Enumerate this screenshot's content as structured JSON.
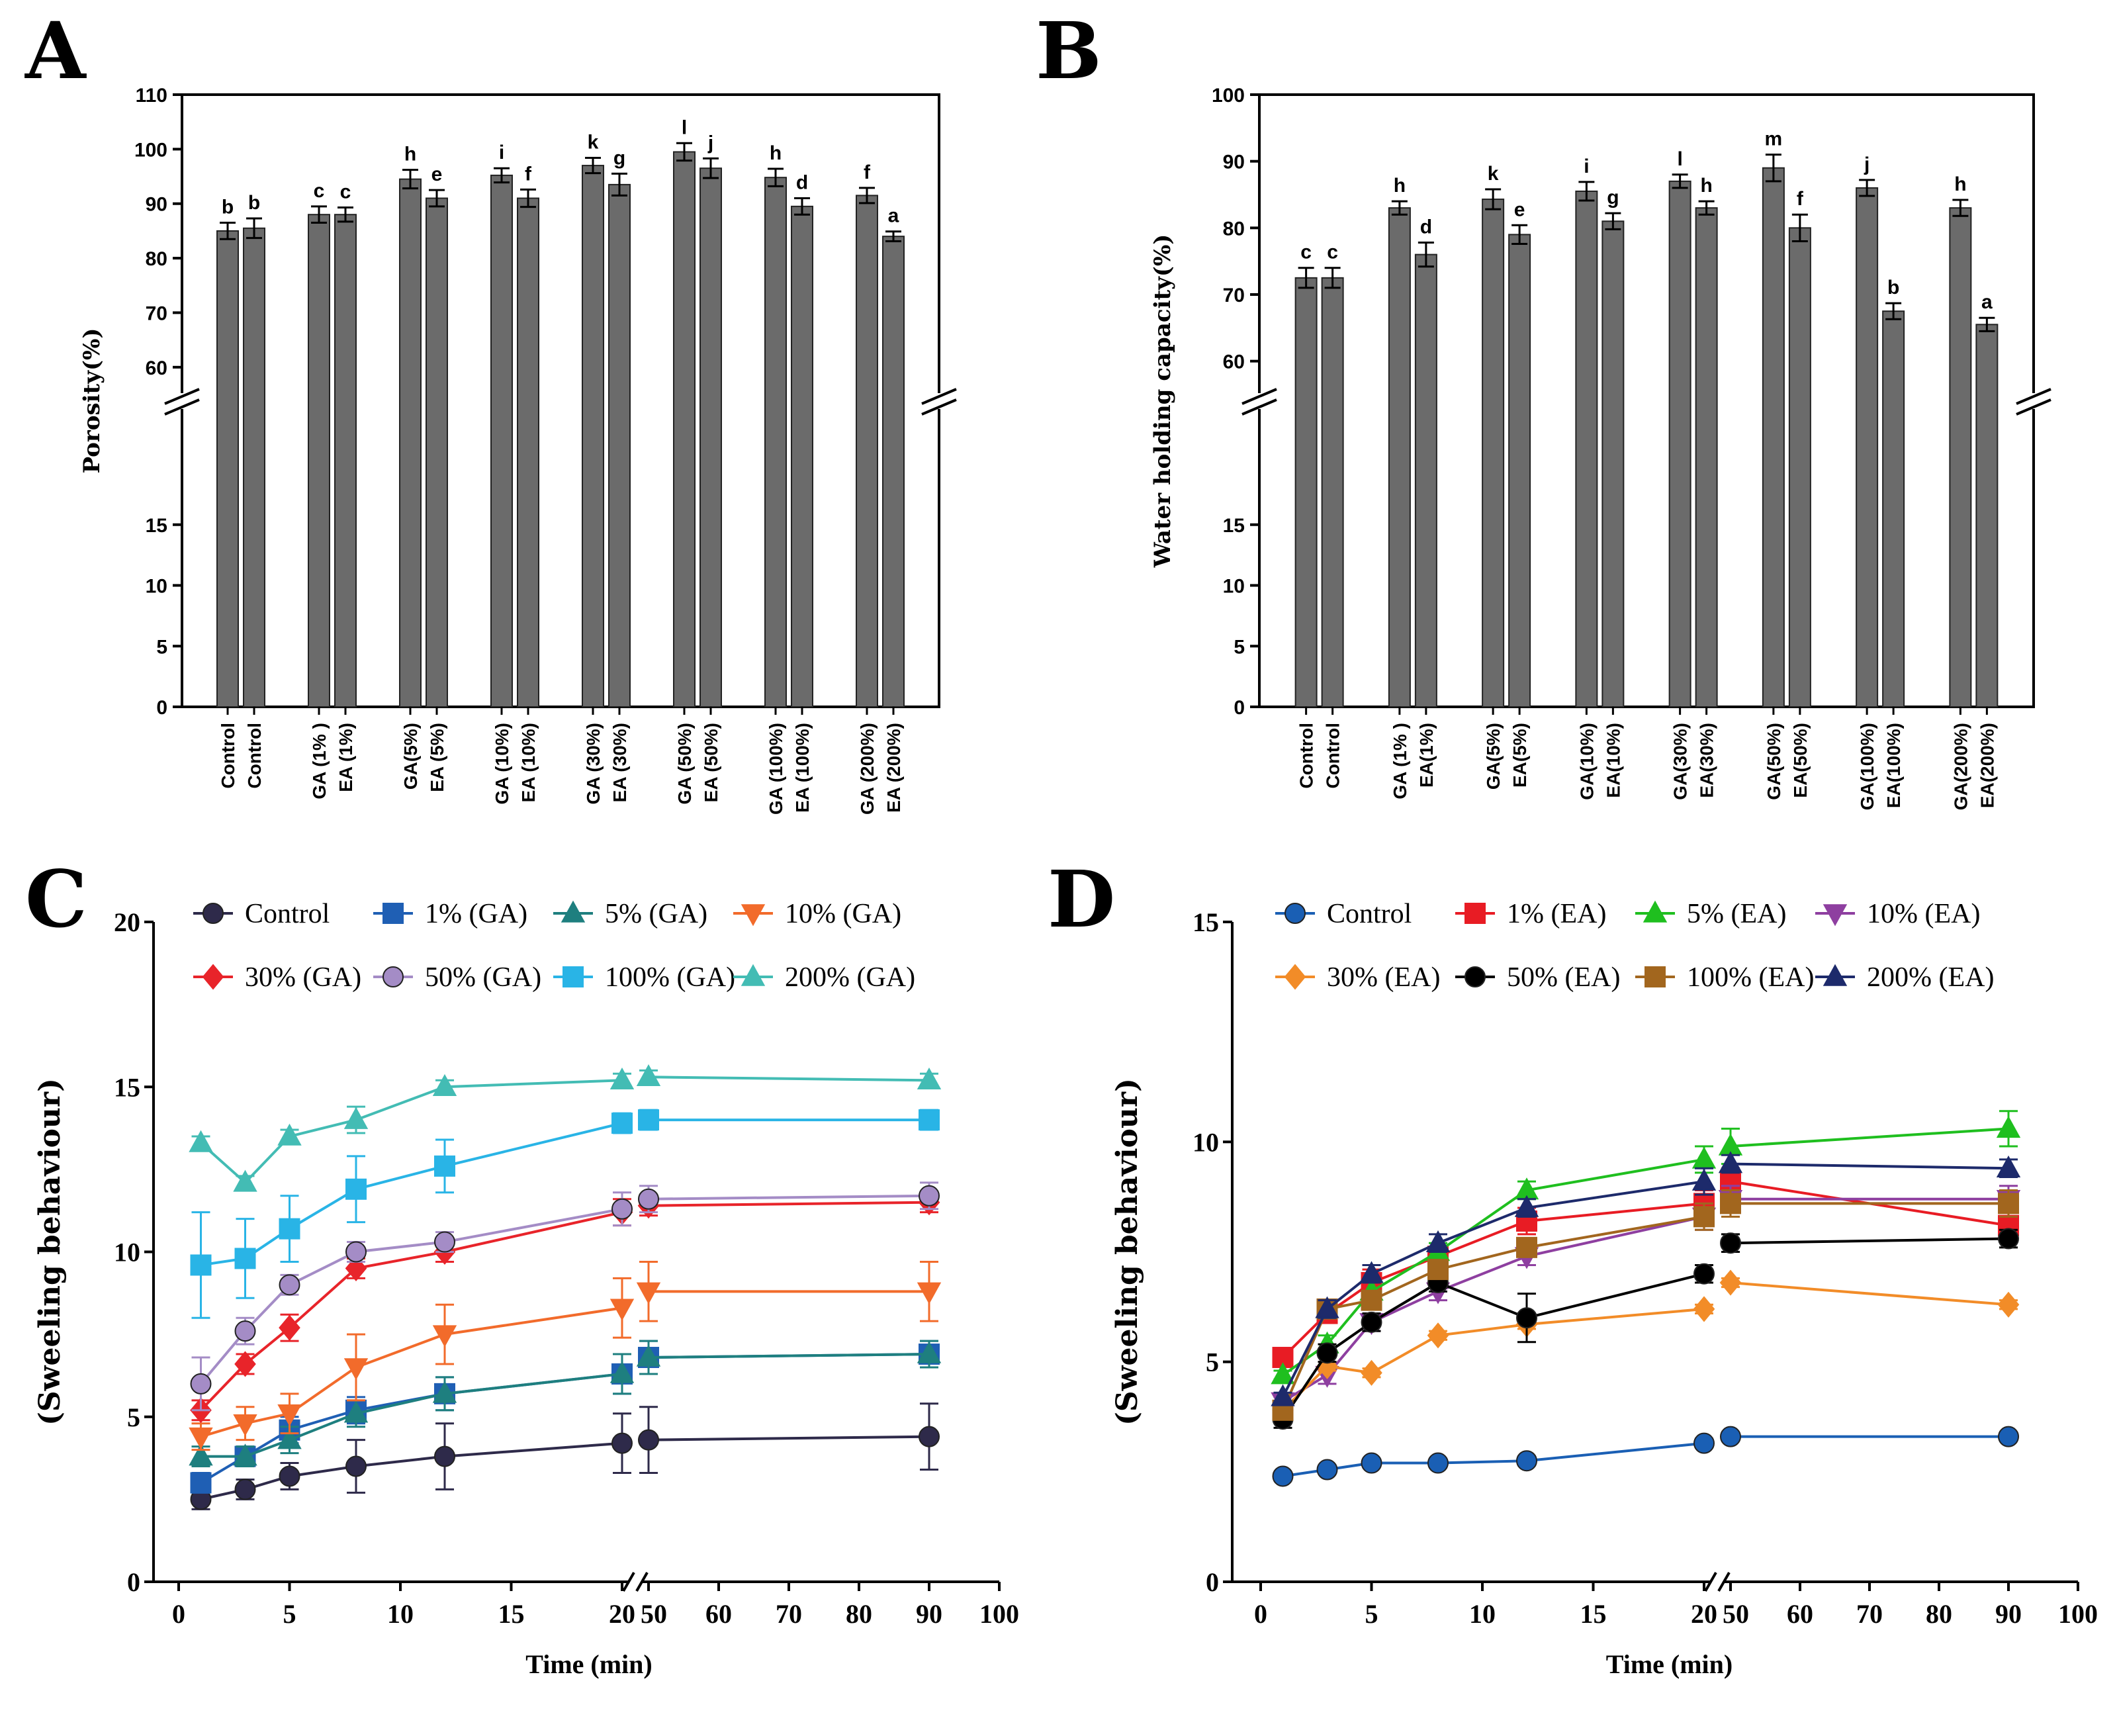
{
  "panels": {
    "A": "A",
    "B": "B",
    "C": "C",
    "D": "D"
  },
  "chart_data": [
    {
      "panel": "A",
      "type": "bar",
      "ylabel": "Porosity(%)",
      "axis_break": true,
      "lower_ticks": [
        0,
        5,
        10,
        15
      ],
      "upper_ticks": [
        60,
        70,
        80,
        90,
        100,
        110
      ],
      "categories": [
        "Control",
        "Control",
        "GA (1% )",
        "EA (1%)",
        "GA(5%)",
        "EA (5%)",
        "GA (10%)",
        "EA (10%)",
        "GA (30%)",
        "EA (30%)",
        "GA (50%)",
        "EA (50%)",
        "GA (100%)",
        "EA (100%)",
        "GA (200%)",
        "EA (200%)"
      ],
      "values": [
        85,
        85.5,
        88,
        88,
        94.5,
        91,
        95.2,
        91,
        97,
        93.5,
        99.5,
        96.5,
        94.8,
        89.5,
        91.5,
        84
      ],
      "errors": [
        1.5,
        1.8,
        1.5,
        1.3,
        1.7,
        1.5,
        1.3,
        1.6,
        1.4,
        2.0,
        1.6,
        1.8,
        1.6,
        1.5,
        1.4,
        0.9
      ],
      "letters": [
        "b",
        "b",
        "c",
        "c",
        "h",
        "e",
        "i",
        "f",
        "k",
        "g",
        "l",
        "j",
        "h",
        "d",
        "f",
        "a"
      ]
    },
    {
      "panel": "B",
      "type": "bar",
      "ylabel": "Water holding capacity(%)",
      "axis_break": true,
      "lower_ticks": [
        0,
        5,
        10,
        15
      ],
      "upper_ticks": [
        60,
        70,
        80,
        90,
        100
      ],
      "categories": [
        "Control",
        "Control",
        "GA (1% )",
        "EA(1%)",
        "GA(5%)",
        "EA(5%)",
        "GA(10%)",
        "EA(10%)",
        "GA(30%)",
        "EA(30%)",
        "GA(50%)",
        "EA(50%)",
        "GA(100%)",
        "EA(100%)",
        "GA(200%)",
        "EA(200%)"
      ],
      "values": [
        72.5,
        72.5,
        83,
        76,
        84.3,
        79,
        85.5,
        81,
        87,
        83,
        89,
        80,
        86,
        67.5,
        83,
        65.5
      ],
      "errors": [
        1.5,
        1.5,
        1.0,
        1.8,
        1.5,
        1.4,
        1.4,
        1.2,
        1.0,
        1.0,
        2.0,
        2.0,
        1.2,
        1.2,
        1.2,
        1.0
      ],
      "letters": [
        "c",
        "c",
        "h",
        "d",
        "k",
        "e",
        "i",
        "g",
        "l",
        "h",
        "m",
        "f",
        "j",
        "b",
        "h",
        "a"
      ]
    },
    {
      "panel": "C",
      "type": "line",
      "xlabel": "Time (min)",
      "ylabel": "(Sweeling behaviour)",
      "ylim": [
        0,
        20
      ],
      "yticks": [
        0,
        5,
        10,
        15,
        20
      ],
      "x_ticks_left": [
        0,
        5,
        10,
        15,
        20
      ],
      "x_ticks_right": [
        50,
        60,
        70,
        80,
        90,
        100
      ],
      "x": [
        1,
        3,
        5,
        8,
        12,
        20,
        50,
        90
      ],
      "series": [
        {
          "name": "Control",
          "color": "#2e2a4a",
          "marker": "circle",
          "values": [
            2.5,
            2.8,
            3.2,
            3.5,
            3.8,
            4.2,
            4.3,
            4.4
          ],
          "errors": [
            0.3,
            0.3,
            0.4,
            0.8,
            1.0,
            0.9,
            1.0,
            1.0
          ]
        },
        {
          "name": "1% (GA)",
          "color": "#1f5fb4",
          "marker": "square",
          "values": [
            3.0,
            3.8,
            4.6,
            5.2,
            5.7,
            6.3,
            6.8,
            6.9
          ],
          "errors": [
            0.3,
            0.3,
            0.4,
            0.4,
            0.5,
            0.6,
            0.5,
            0.4
          ]
        },
        {
          "name": "5% (GA)",
          "color": "#1e7f7f",
          "marker": "triangle-up",
          "values": [
            3.8,
            3.8,
            4.3,
            5.1,
            5.7,
            6.3,
            6.8,
            6.9
          ],
          "errors": [
            0.3,
            0.3,
            0.4,
            0.4,
            0.5,
            0.6,
            0.5,
            0.4
          ]
        },
        {
          "name": "10% (GA)",
          "color": "#f26b2b",
          "marker": "triangle-down",
          "values": [
            4.4,
            4.8,
            5.1,
            6.5,
            7.5,
            8.3,
            8.8,
            8.8
          ],
          "errors": [
            0.4,
            0.5,
            0.6,
            1.0,
            0.9,
            0.9,
            0.9,
            0.9
          ]
        },
        {
          "name": "30% (GA)",
          "color": "#e8242a",
          "marker": "diamond",
          "values": [
            5.2,
            6.6,
            7.7,
            9.5,
            10.0,
            11.2,
            11.4,
            11.5
          ],
          "errors": [
            0.3,
            0.3,
            0.4,
            0.3,
            0.3,
            0.4,
            0.3,
            0.3
          ]
        },
        {
          "name": "50% (GA)",
          "color": "#a48cc6",
          "marker": "circle",
          "values": [
            6.0,
            7.6,
            9.0,
            10.0,
            10.3,
            11.3,
            11.6,
            11.7
          ],
          "errors": [
            0.8,
            0.4,
            0.3,
            0.3,
            0.3,
            0.5,
            0.4,
            0.4
          ]
        },
        {
          "name": "100% (GA)",
          "color": "#29b4e6",
          "marker": "square",
          "values": [
            9.6,
            9.8,
            10.7,
            11.9,
            12.6,
            13.9,
            14.0,
            14.0
          ],
          "errors": [
            1.6,
            1.2,
            1.0,
            1.0,
            0.8,
            0.3,
            0.3,
            0.3
          ]
        },
        {
          "name": "200% (GA)",
          "color": "#43bcb4",
          "marker": "triangle-up",
          "values": [
            13.3,
            12.1,
            13.5,
            14.0,
            15.0,
            15.2,
            15.3,
            15.2
          ],
          "errors": [
            0.2,
            0.2,
            0.2,
            0.4,
            0.2,
            0.2,
            0.2,
            0.2
          ]
        }
      ]
    },
    {
      "panel": "D",
      "type": "line",
      "xlabel": "Time (min)",
      "ylabel": "(Sweeling behaviour)",
      "ylim": [
        0,
        15
      ],
      "yticks": [
        0,
        5,
        10,
        15
      ],
      "x_ticks_left": [
        0,
        5,
        10,
        15,
        20
      ],
      "x_ticks_right": [
        50,
        60,
        70,
        80,
        90,
        100
      ],
      "x": [
        1,
        3,
        5,
        8,
        12,
        20,
        50,
        90
      ],
      "series": [
        {
          "name": "Control",
          "color": "#1a5fb4",
          "marker": "circle",
          "values": [
            2.4,
            2.55,
            2.7,
            2.7,
            2.75,
            3.15,
            3.3,
            3.3
          ],
          "errors": [
            0.1,
            0.1,
            0.1,
            0.1,
            0.1,
            0.1,
            0.1,
            0.1
          ]
        },
        {
          "name": "1% (EA)",
          "color": "#e81c24",
          "marker": "square",
          "values": [
            5.1,
            6.1,
            6.8,
            7.4,
            8.2,
            8.6,
            9.1,
            8.1
          ],
          "errors": [
            0.1,
            0.2,
            0.3,
            0.2,
            0.3,
            0.3,
            0.3,
            0.3
          ]
        },
        {
          "name": "5% (EA)",
          "color": "#1fbf1f",
          "marker": "triangle-up",
          "values": [
            4.7,
            5.4,
            6.6,
            7.5,
            8.9,
            9.6,
            9.9,
            10.3
          ],
          "errors": [
            0.1,
            0.2,
            0.2,
            0.2,
            0.2,
            0.3,
            0.4,
            0.4
          ]
        },
        {
          "name": "10% (EA)",
          "color": "#8e3fa0",
          "marker": "triangle-down",
          "values": [
            4.1,
            4.7,
            5.9,
            6.6,
            7.4,
            8.3,
            8.7,
            8.7
          ],
          "errors": [
            0.1,
            0.2,
            0.2,
            0.2,
            0.2,
            0.3,
            0.3,
            0.3
          ]
        },
        {
          "name": "30% (EA)",
          "color": "#f28c28",
          "marker": "diamond",
          "values": [
            3.9,
            4.9,
            4.75,
            5.6,
            5.85,
            6.2,
            6.8,
            6.3
          ],
          "errors": [
            0.1,
            0.1,
            0.1,
            0.1,
            0.1,
            0.1,
            0.1,
            0.1
          ]
        },
        {
          "name": "50% (EA)",
          "color": "#000000",
          "marker": "circle",
          "values": [
            3.7,
            5.2,
            5.9,
            6.8,
            6.0,
            7.0,
            7.7,
            7.8
          ],
          "errors": [
            0.2,
            0.2,
            0.2,
            0.2,
            0.55,
            0.2,
            0.2,
            0.2
          ]
        },
        {
          "name": "100% (EA)",
          "color": "#a2661e",
          "marker": "square",
          "values": [
            3.9,
            6.2,
            6.4,
            7.1,
            7.6,
            8.3,
            8.6,
            8.6
          ],
          "errors": [
            0.1,
            0.2,
            0.2,
            0.2,
            0.2,
            0.3,
            0.3,
            0.3
          ]
        },
        {
          "name": "200% (EA)",
          "color": "#1d2a6b",
          "marker": "triangle-up",
          "values": [
            4.2,
            6.2,
            7.0,
            7.7,
            8.5,
            9.1,
            9.5,
            9.4
          ],
          "errors": [
            0.1,
            0.2,
            0.2,
            0.2,
            0.2,
            0.3,
            0.2,
            0.2
          ]
        }
      ]
    }
  ]
}
